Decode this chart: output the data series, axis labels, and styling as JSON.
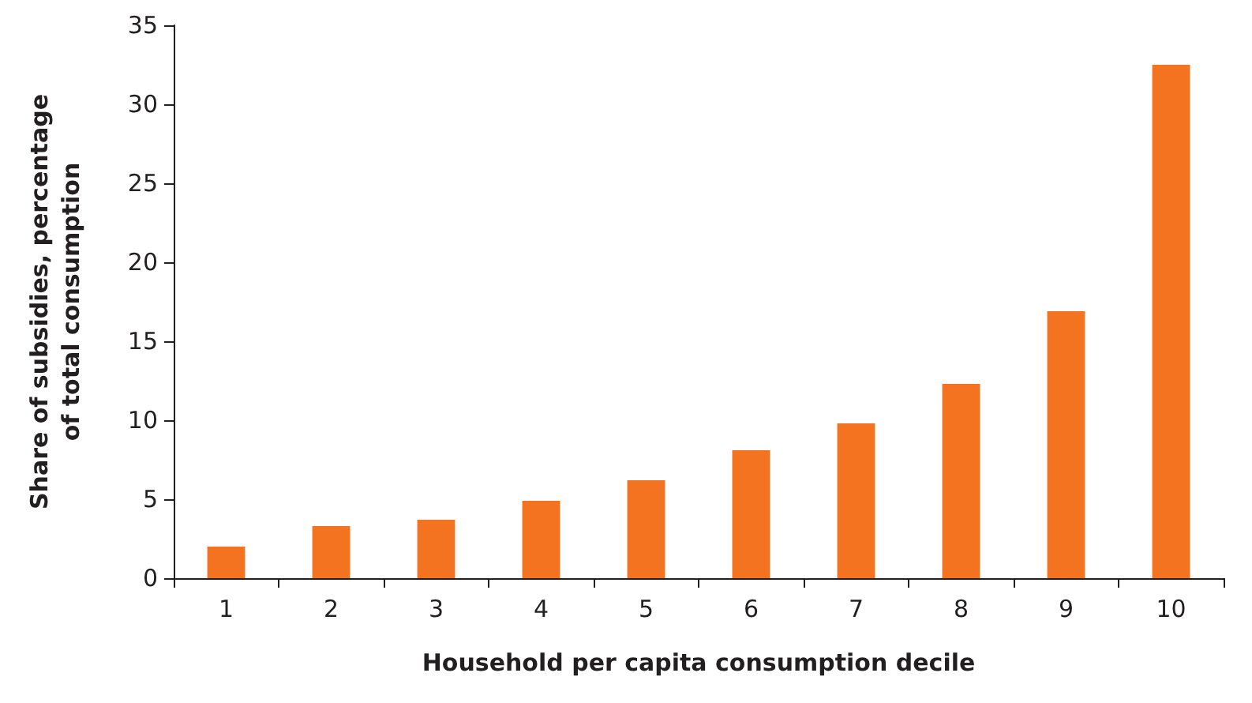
{
  "chart_data": {
    "type": "bar",
    "xlabel": "Household per capita consumption decile",
    "ylabel": "Share of subsidies, percentage\nof total consumption",
    "categories": [
      "1",
      "2",
      "3",
      "4",
      "5",
      "6",
      "7",
      "8",
      "9",
      "10"
    ],
    "values": [
      2.0,
      3.3,
      3.7,
      4.9,
      6.2,
      8.1,
      9.8,
      12.3,
      16.9,
      32.5
    ],
    "color": "#f47321",
    "ylim": [
      0,
      35
    ],
    "yticks": [
      0,
      5,
      10,
      15,
      20,
      25,
      30,
      35
    ],
    "grid": false
  }
}
